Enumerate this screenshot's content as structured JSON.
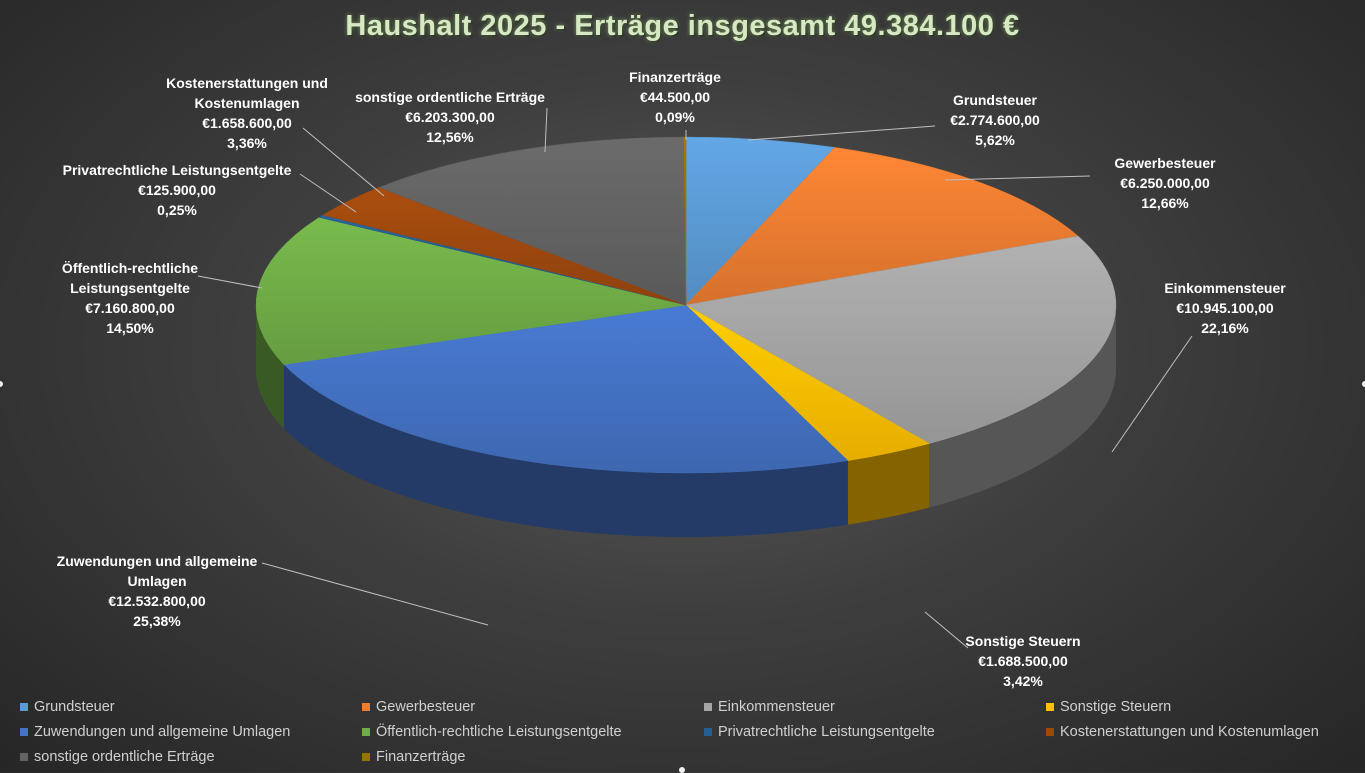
{
  "chart_data": {
    "type": "pie",
    "title": "Haushalt 2025 - Erträge insgesamt 49.384.100 €",
    "slices": [
      {
        "name": "Grundsteuer",
        "value": 2774600,
        "value_label": "€2.774.600,00",
        "percent_label": "5,62%",
        "color": "#5b9bd5"
      },
      {
        "name": "Gewerbesteuer",
        "value": 6250000,
        "value_label": "€6.250.000,00",
        "percent_label": "12,66%",
        "color": "#ed7d31"
      },
      {
        "name": "Einkommensteuer",
        "value": 10945100,
        "value_label": "€10.945.100,00",
        "percent_label": "22,16%",
        "color": "#a5a5a5"
      },
      {
        "name": "Sonstige Steuern",
        "value": 1688500,
        "value_label": "€1.688.500,00",
        "percent_label": "3,42%",
        "color": "#ffc000"
      },
      {
        "name": "Zuwendungen und allgemeine Umlagen",
        "label_lines": [
          "Zuwendungen und allgemeine",
          "Umlagen"
        ],
        "value": 12532800,
        "value_label": "€12.532.800,00",
        "percent_label": "25,38%",
        "color": "#4472c4"
      },
      {
        "name": "Öffentlich-rechtliche Leistungsentgelte",
        "label_lines": [
          "Öffentlich-rechtliche",
          "Leistungsentgelte"
        ],
        "value": 7160800,
        "value_label": "€7.160.800,00",
        "percent_label": "14,50%",
        "color": "#70ad47"
      },
      {
        "name": "Privatrechtliche Leistungsentgelte",
        "value": 125900,
        "value_label": "€125.900,00",
        "percent_label": "0,25%",
        "color": "#255e91"
      },
      {
        "name": "Kostenerstattungen und Kostenumlagen",
        "label_lines": [
          "Kostenerstattungen und",
          "Kostenumlagen"
        ],
        "value": 1658600,
        "value_label": "€1.658.600,00",
        "percent_label": "3,36%",
        "color": "#9e480e"
      },
      {
        "name": "sonstige ordentliche Erträge",
        "value": 6203300,
        "value_label": "€6.203.300,00",
        "percent_label": "12,56%",
        "color": "#636363"
      },
      {
        "name": "Finanzerträge",
        "value": 44500,
        "value_label": "€44.500,00",
        "percent_label": "0,09%",
        "color": "#997300"
      }
    ],
    "legend_position": "bottom",
    "style": "3d-pie"
  }
}
